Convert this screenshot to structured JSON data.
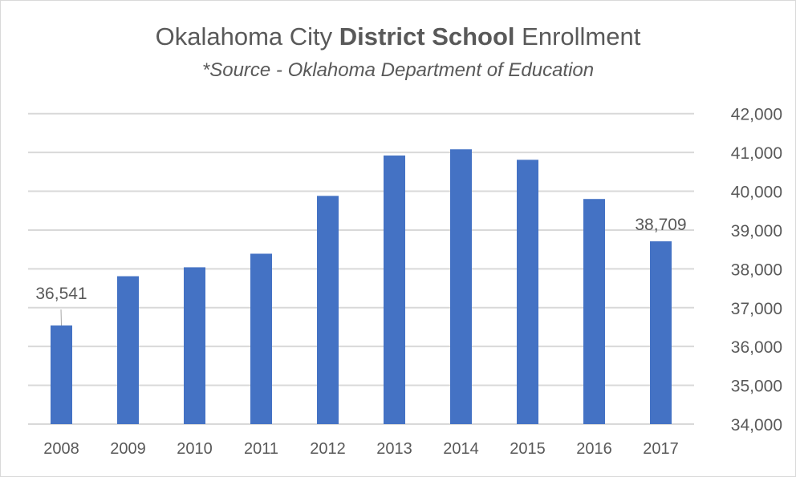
{
  "chart_data": {
    "type": "bar",
    "title_parts": [
      "Okalahoma City ",
      "District School",
      " Enrollment"
    ],
    "subtitle": "*Source - Oklahoma Department of Education",
    "categories": [
      "2008",
      "2009",
      "2010",
      "2011",
      "2012",
      "2013",
      "2014",
      "2015",
      "2016",
      "2017"
    ],
    "values": [
      36541,
      37810,
      38040,
      38390,
      39880,
      40920,
      41080,
      40810,
      39800,
      38709
    ],
    "data_labels": {
      "0": "36,541",
      "9": "38,709"
    },
    "ylim": [
      34000,
      42000
    ],
    "yticks": [
      34000,
      35000,
      36000,
      37000,
      38000,
      39000,
      40000,
      41000,
      42000
    ],
    "ytick_labels": [
      "34,000",
      "35,000",
      "36,000",
      "37,000",
      "38,000",
      "39,000",
      "40,000",
      "41,000",
      "42,000"
    ],
    "y_axis_position": "right",
    "grid": true,
    "xlabel": "",
    "ylabel": "",
    "bar_color": "#4472c4"
  }
}
